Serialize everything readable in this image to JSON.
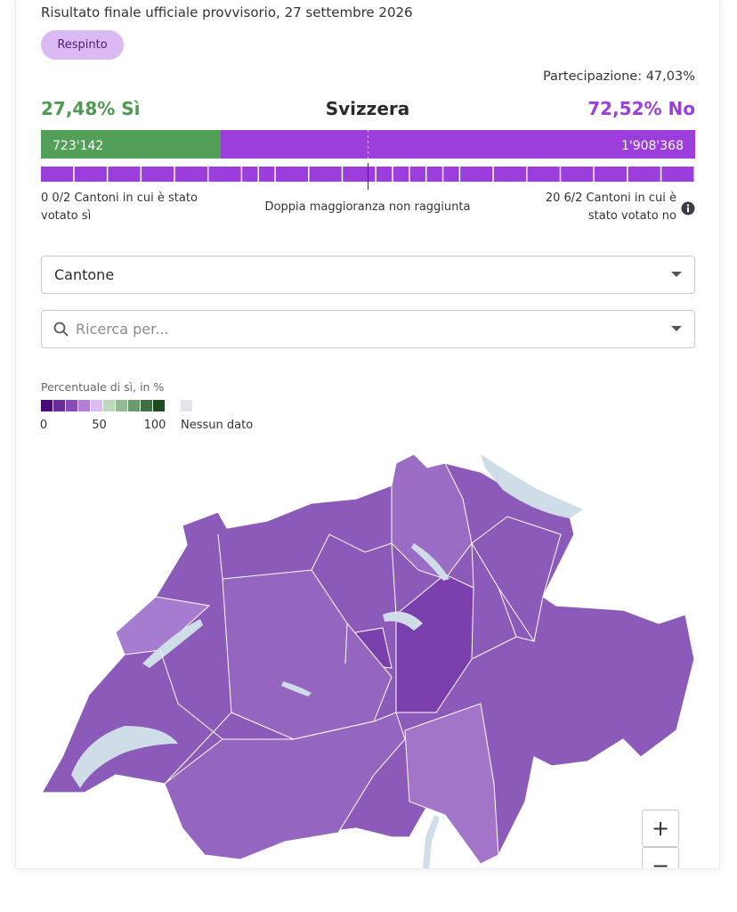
{
  "header": {
    "subtitle": "Risultato finale ufficiale provvisorio, 27 settembre 2026",
    "status": "Respinto",
    "participation": "Partecipazione: 47,03%"
  },
  "result": {
    "yes": {
      "value": 27.48,
      "label": "27,48% Sì"
    },
    "region": "Svizzera",
    "no": {
      "value": 72.52,
      "label": "72,52% No"
    },
    "yes_votes": "723'142",
    "no_votes": "1'908'368"
  },
  "cantons": {
    "yes_label": "0 0/2 Cantoni in cui è stato votato sì",
    "majority": "Doppia maggioranza non raggiunta",
    "no_label": "20 6/2 Cantoni in cui è stato votato no"
  },
  "filters": {
    "level": "Cantone",
    "search": "Ricerca per..."
  },
  "legend": {
    "title": "Percentuale di sì, in %",
    "ticks": [
      0,
      50,
      100
    ],
    "no_data": "Nessun dato"
  },
  "zoom": {
    "in": "+",
    "out": "−"
  }
}
